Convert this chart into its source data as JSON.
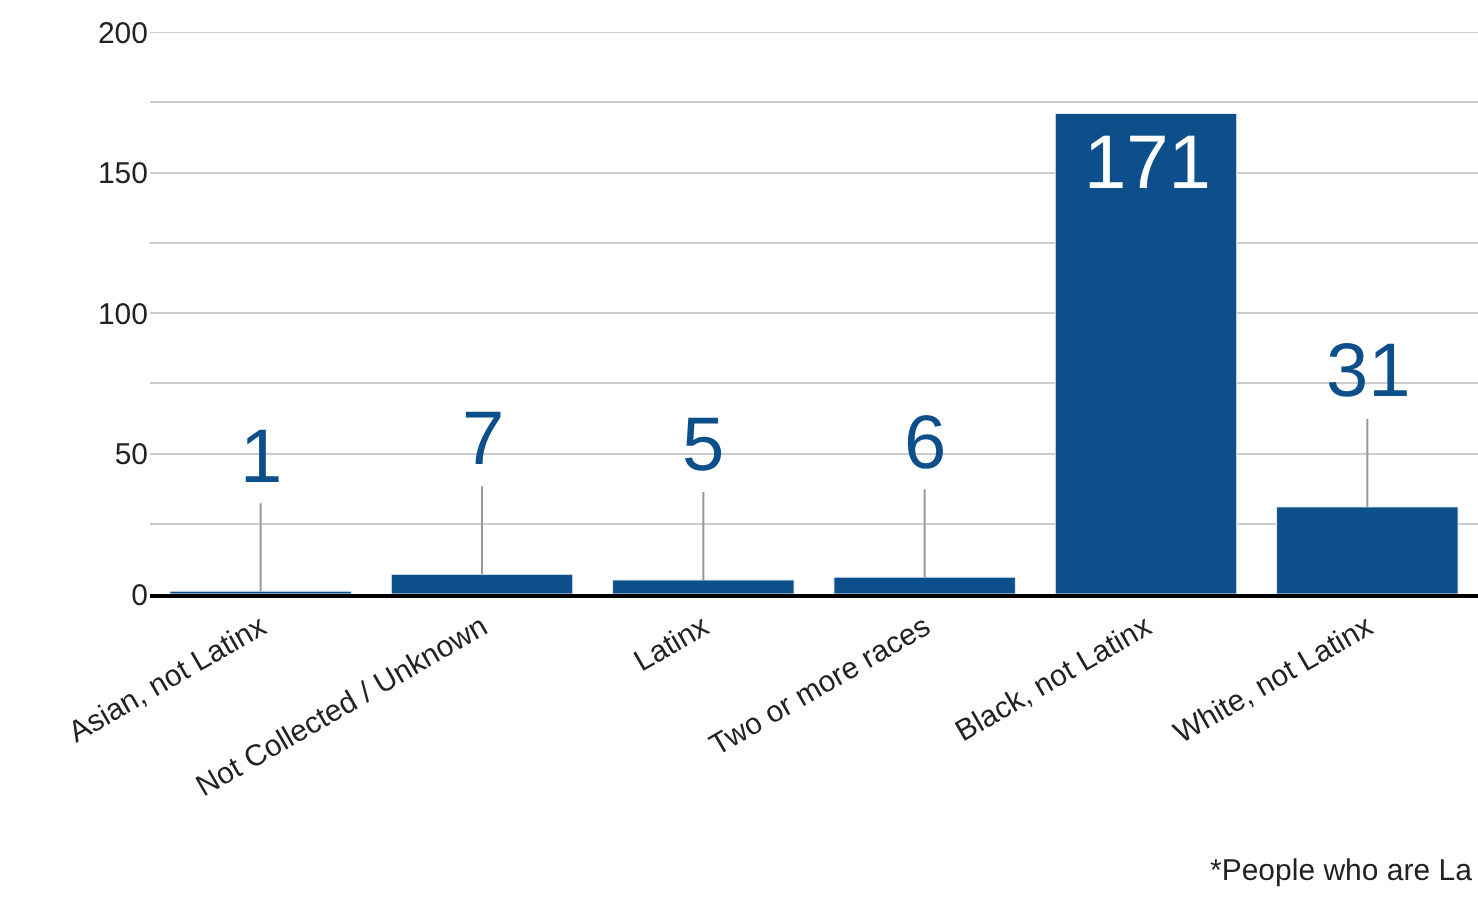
{
  "chart_data": {
    "type": "bar",
    "categories": [
      "Asian, not Latinx",
      "Not Collected / Unknown",
      "Latinx",
      "Two or more races",
      "Black, not Latinx",
      "White, not Latinx"
    ],
    "values": [
      1,
      7,
      5,
      6,
      171,
      31
    ],
    "color": "#0d4f8b",
    "ylim": [
      0,
      200
    ],
    "yticks": [
      0,
      {
        "value": 25,
        "label": null
      },
      50,
      {
        "value": 75,
        "label": null
      },
      100,
      {
        "value": 125,
        "label": null
      },
      150,
      {
        "value": 175,
        "label": null
      },
      200
    ],
    "grid": "y",
    "data_labels": true,
    "annotations": [
      "*People who are La"
    ]
  }
}
